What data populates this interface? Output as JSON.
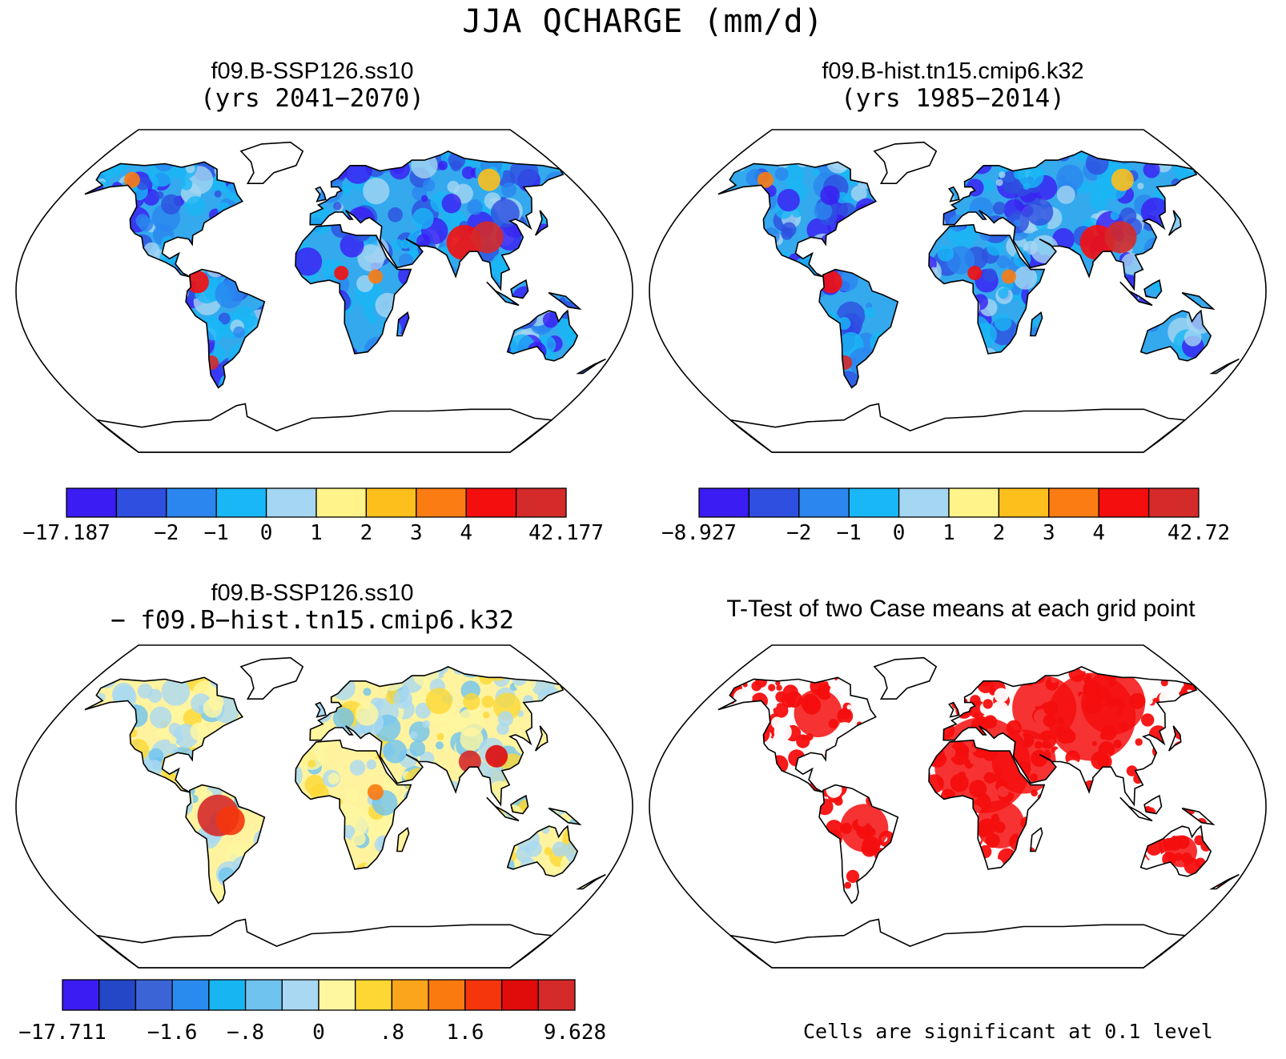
{
  "figure": {
    "title": "JJA QCHARGE (mm/d)"
  },
  "panels": [
    {
      "id": "top-left",
      "title_line1": "f09.B-SSP126.ss10",
      "title_line2": "(yrs 2041−2070)",
      "colorbar": {
        "colors": [
          "#3b1cf2",
          "#2e4fe0",
          "#2b86ef",
          "#19b7f5",
          "#a5d6f2",
          "#fff38a",
          "#fdbf1c",
          "#fb7c12",
          "#f50e0e",
          "#d42a2a"
        ],
        "labels": [
          "−17.187",
          "−2",
          "−1",
          "0",
          "1",
          "2",
          "3",
          "4",
          "42.177"
        ],
        "label_positions": [
          0,
          2,
          3,
          4,
          5,
          6,
          7,
          8,
          10
        ]
      }
    },
    {
      "id": "top-right",
      "title_line1": "f09.B-hist.tn15.cmip6.k32",
      "title_line2": "(yrs 1985−2014)",
      "colorbar": {
        "colors": [
          "#3b1cf2",
          "#2e4fe0",
          "#2b86ef",
          "#19b7f5",
          "#a5d6f2",
          "#fff38a",
          "#fdbf1c",
          "#fb7c12",
          "#f50e0e",
          "#d42a2a"
        ],
        "labels": [
          "−8.927",
          "−2",
          "−1",
          "0",
          "1",
          "2",
          "3",
          "4",
          "42.72"
        ],
        "label_positions": [
          0,
          2,
          3,
          4,
          5,
          6,
          7,
          8,
          10
        ]
      }
    },
    {
      "id": "bottom-left",
      "title_line1": "f09.B-SSP126.ss10",
      "title_line2": "− f09.B−hist.tn15.cmip6.k32",
      "colorbar": {
        "colors": [
          "#3b1cf2",
          "#2447c8",
          "#3b64d6",
          "#2a8bef",
          "#18b5f3",
          "#6fc3ef",
          "#a9d8f2",
          "#fff6a0",
          "#fdd835",
          "#fba51c",
          "#fb7a10",
          "#f5350c",
          "#e00b0b",
          "#d42a2a"
        ],
        "labels": [
          "−17.711",
          "−1.6",
          "−.8",
          "0",
          ".8",
          "1.6",
          "9.628"
        ],
        "label_positions": [
          0,
          3,
          5,
          7,
          9,
          11,
          14
        ]
      }
    },
    {
      "id": "bottom-right",
      "title_line1": "T-Test of two Case means at each grid point",
      "note": "Cells are significant at 0.1 level",
      "sig_color": "#f50e0e"
    }
  ]
}
